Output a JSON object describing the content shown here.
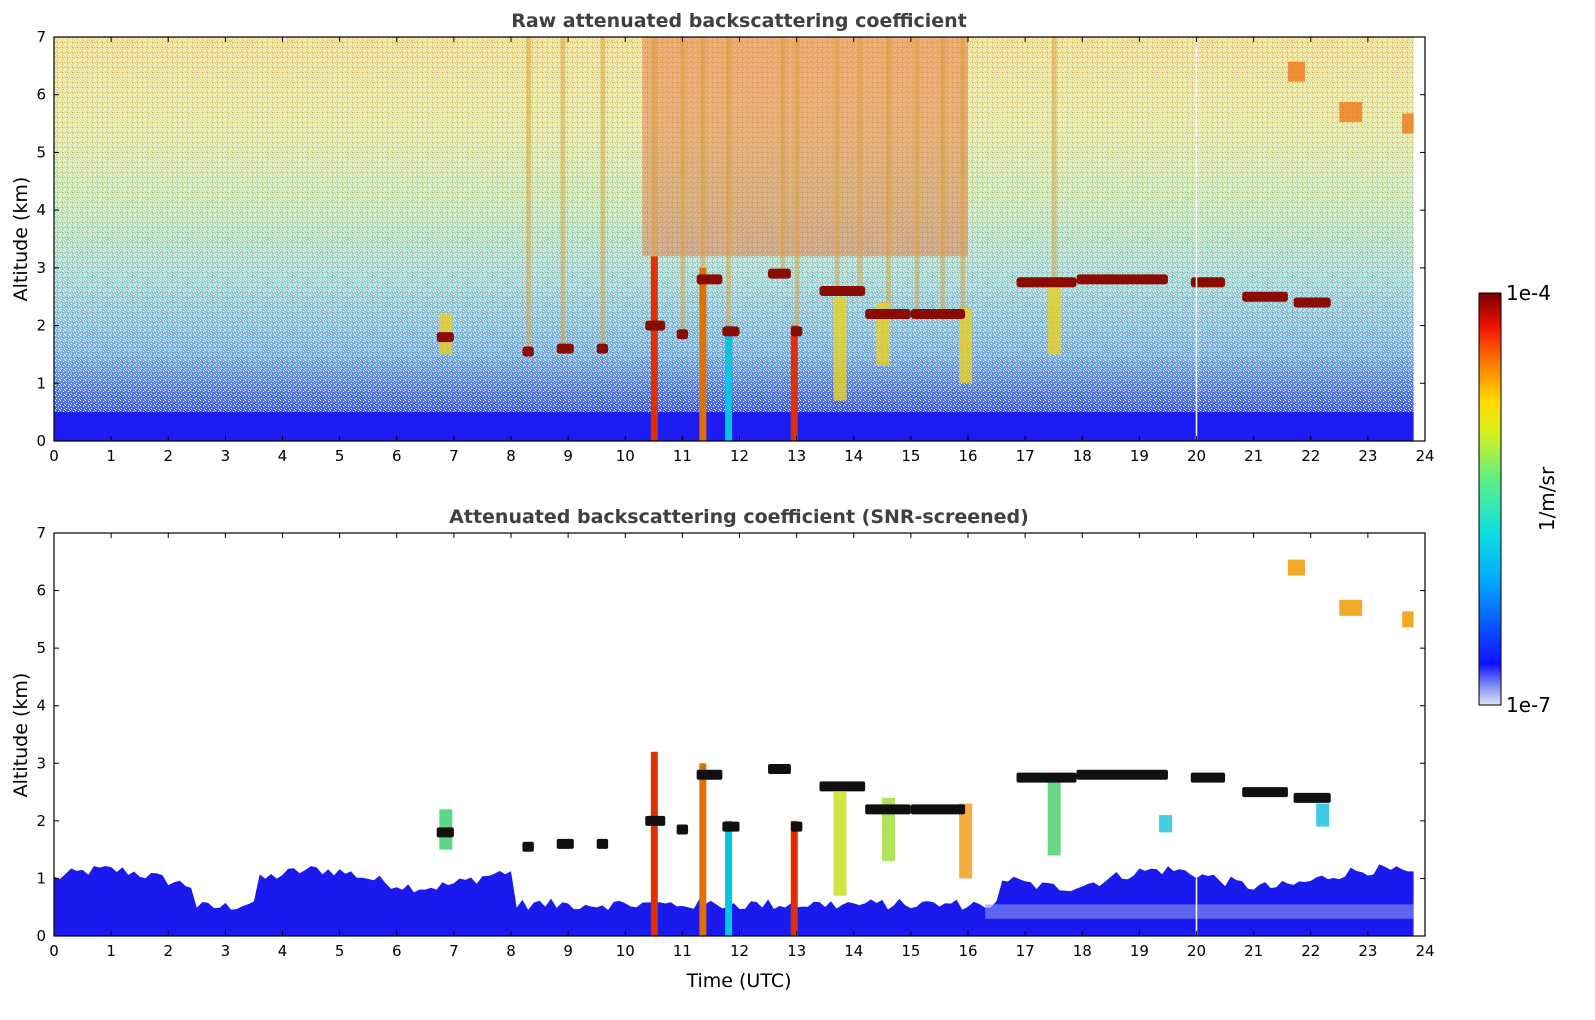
{
  "chart_data": [
    {
      "type": "heatmap",
      "title": "Raw attenuated backscattering coefficient",
      "xlabel": "",
      "ylabel": "Altitude (km)",
      "xlim": [
        0,
        24
      ],
      "ylim": [
        0,
        7
      ],
      "xticks": [
        "0",
        "1",
        "2",
        "3",
        "4",
        "5",
        "6",
        "7",
        "8",
        "9",
        "10",
        "11",
        "12",
        "13",
        "14",
        "15",
        "16",
        "17",
        "18",
        "19",
        "20",
        "21",
        "22",
        "23",
        "24"
      ],
      "yticks": [
        "0",
        "1",
        "2",
        "3",
        "4",
        "5",
        "6",
        "7"
      ],
      "data_end_hour": 23.8,
      "colorscale": "jet, log scale 1e-7 to 1e-4 1/m/sr",
      "cloud_layers": [
        {
          "t0": 6.7,
          "t1": 7.0,
          "alt_km": 1.8
        },
        {
          "t0": 8.2,
          "t1": 8.4,
          "alt_km": 1.55
        },
        {
          "t0": 8.8,
          "t1": 9.1,
          "alt_km": 1.6
        },
        {
          "t0": 9.5,
          "t1": 9.7,
          "alt_km": 1.6
        },
        {
          "t0": 10.35,
          "t1": 10.7,
          "alt_km": 2.0
        },
        {
          "t0": 10.9,
          "t1": 11.1,
          "alt_km": 1.85
        },
        {
          "t0": 11.25,
          "t1": 11.7,
          "alt_km": 2.8
        },
        {
          "t0": 11.7,
          "t1": 12.0,
          "alt_km": 1.9
        },
        {
          "t0": 12.5,
          "t1": 12.9,
          "alt_km": 2.9
        },
        {
          "t0": 12.9,
          "t1": 13.1,
          "alt_km": 1.9
        },
        {
          "t0": 13.4,
          "t1": 14.2,
          "alt_km": 2.6
        },
        {
          "t0": 14.2,
          "t1": 15.0,
          "alt_km": 2.2
        },
        {
          "t0": 15.0,
          "t1": 15.95,
          "alt_km": 2.2
        },
        {
          "t0": 16.85,
          "t1": 17.9,
          "alt_km": 2.75
        },
        {
          "t0": 17.9,
          "t1": 19.5,
          "alt_km": 2.8
        },
        {
          "t0": 19.9,
          "t1": 20.5,
          "alt_km": 2.75
        },
        {
          "t0": 20.8,
          "t1": 21.6,
          "alt_km": 2.5
        },
        {
          "t0": 21.7,
          "t1": 22.35,
          "alt_km": 2.4
        }
      ],
      "high_clouds": [
        {
          "t0": 21.6,
          "t1": 21.9,
          "alt_km": 6.4
        },
        {
          "t0": 22.5,
          "t1": 22.9,
          "alt_km": 5.7
        },
        {
          "t0": 23.6,
          "t1": 23.8,
          "alt_km": 5.5
        }
      ]
    },
    {
      "type": "heatmap",
      "title": "Attenuated backscattering coefficient (SNR-screened)",
      "xlabel": "Time (UTC)",
      "ylabel": "Altitude (km)",
      "xlim": [
        0,
        24
      ],
      "ylim": [
        0,
        7
      ],
      "xticks": [
        "0",
        "1",
        "2",
        "3",
        "4",
        "5",
        "6",
        "7",
        "8",
        "9",
        "10",
        "11",
        "12",
        "13",
        "14",
        "15",
        "16",
        "17",
        "18",
        "19",
        "20",
        "21",
        "22",
        "23",
        "24"
      ],
      "yticks": [
        "0",
        "1",
        "2",
        "3",
        "4",
        "5",
        "6",
        "7"
      ],
      "data_end_hour": 23.8,
      "colorscale": "jet, log scale 1e-7 to 1e-4 1/m/sr; saturated values shown black"
    }
  ],
  "colorbar": {
    "label": "1/m/sr",
    "max_label": "1e-4",
    "min_label": "1e-7"
  }
}
